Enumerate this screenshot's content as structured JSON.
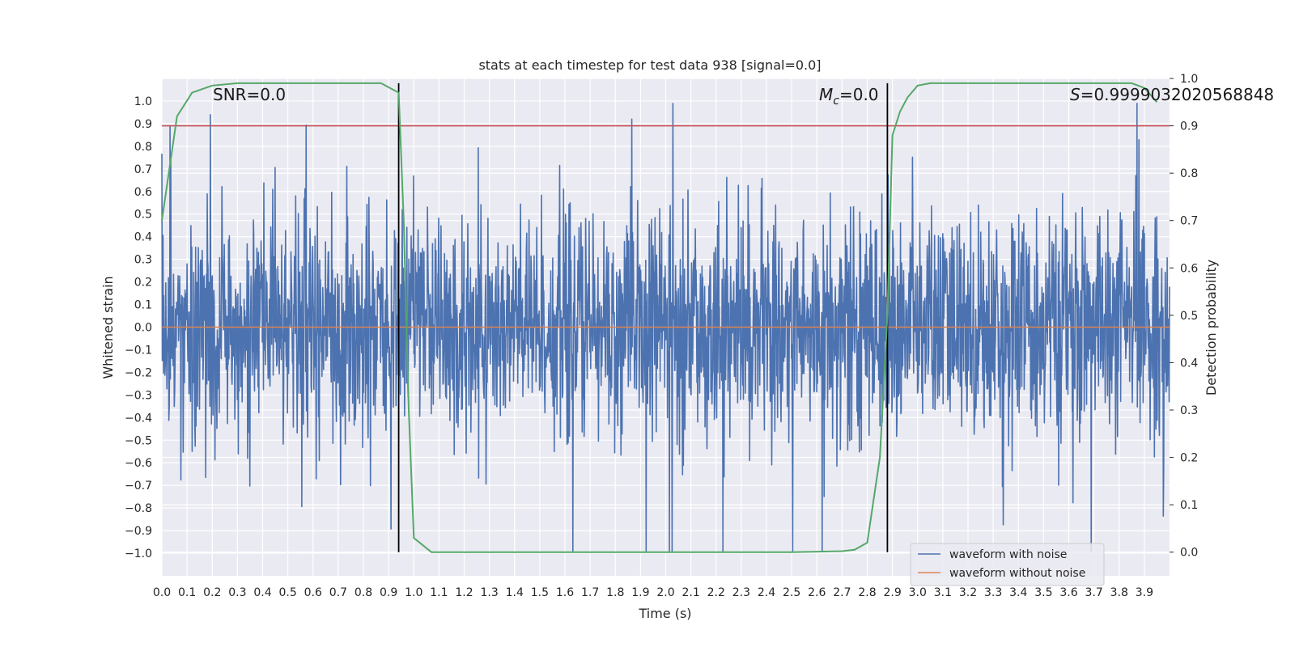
{
  "chart_data": {
    "type": "line",
    "title": "stats at each timestep for test data 938 [signal=0.0]",
    "xlabel": "Time (s)",
    "ylabel": "Whitened strain",
    "y2label": "Detection probability",
    "xlim": [
      0.0,
      4.0
    ],
    "ylim": [
      -1.1,
      1.1
    ],
    "y2lim": [
      -0.05,
      1.0
    ],
    "xticks": [
      "0.0",
      "0.1",
      "0.2",
      "0.3",
      "0.4",
      "0.5",
      "0.6",
      "0.7",
      "0.8",
      "0.9",
      "1.0",
      "1.1",
      "1.2",
      "1.3",
      "1.4",
      "1.5",
      "1.6",
      "1.7",
      "1.8",
      "1.9",
      "2.0",
      "2.1",
      "2.2",
      "2.3",
      "2.4",
      "2.5",
      "2.6",
      "2.7",
      "2.8",
      "2.9",
      "3.0",
      "3.1",
      "3.2",
      "3.3",
      "3.4",
      "3.5",
      "3.6",
      "3.7",
      "3.8",
      "3.9"
    ],
    "yticks": [
      "1.0",
      "0.9",
      "0.8",
      "0.7",
      "0.6",
      "0.5",
      "0.4",
      "0.3",
      "0.2",
      "0.1",
      "0.0",
      "-0.1",
      "-0.2",
      "-0.3",
      "-0.4",
      "-0.5",
      "-0.6",
      "-0.7",
      "-0.8",
      "-0.9",
      "-1.0"
    ],
    "y2ticks": [
      "1.0",
      "0.9",
      "0.8",
      "0.7",
      "0.6",
      "0.5",
      "0.4",
      "0.3",
      "0.2",
      "0.1",
      "0.0"
    ],
    "annotations": {
      "snr": "SNR=0.0",
      "mc_symbol": "M",
      "mc_sub": "c",
      "mc_value": "=0.0",
      "s_symbol": "S",
      "s_value": "=0.9999032020568848"
    },
    "legend": {
      "position": "lower-right",
      "entries": [
        "waveform with noise",
        "waveform without noise"
      ]
    },
    "series": [
      {
        "name": "waveform with noise",
        "color": "#4c72b0",
        "description": "dense noise in roughly -1.0 to 1.0"
      },
      {
        "name": "waveform without noise",
        "color": "#dd8452",
        "constant": 0.0
      }
    ],
    "threshold": {
      "value": 0.9,
      "axis": "y2",
      "color": "#c44e52"
    },
    "vertical_lines": [
      0.94,
      2.88
    ],
    "detection_probability": {
      "color": "#55a868",
      "x": [
        0.0,
        0.06,
        0.12,
        0.2,
        0.3,
        0.5,
        0.7,
        0.87,
        0.94,
        0.96,
        0.98,
        1.0,
        1.07,
        1.2,
        2.0,
        2.5,
        2.7,
        2.75,
        2.8,
        2.85,
        2.88,
        2.9,
        2.93,
        2.96,
        3.0,
        3.05,
        3.5,
        3.85,
        3.9,
        3.95
      ],
      "y": [
        0.7,
        0.92,
        0.97,
        0.985,
        0.99,
        0.99,
        0.99,
        0.99,
        0.97,
        0.7,
        0.3,
        0.03,
        0.0,
        0.0,
        0.0,
        0.0,
        0.002,
        0.005,
        0.02,
        0.2,
        0.5,
        0.88,
        0.93,
        0.96,
        0.985,
        0.99,
        0.99,
        0.99,
        0.98,
        0.95
      ]
    }
  }
}
